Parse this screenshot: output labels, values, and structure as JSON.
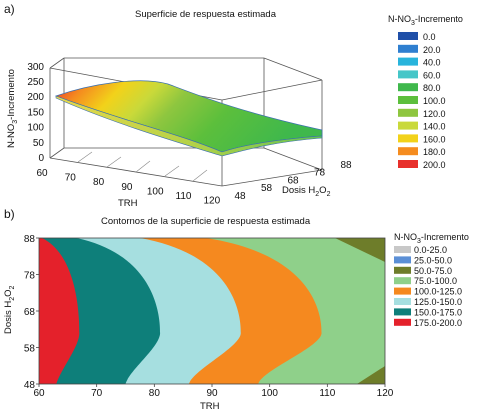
{
  "chart_data": [
    {
      "panel": "a)",
      "type": "area",
      "title": "Superficie de respuesta estimada",
      "xlabel": "TRH",
      "ylabel": "Dosis H2O2",
      "zlabel": "N-NO3-Incremento",
      "x_ticks": [
        "60",
        "70",
        "80",
        "90",
        "100",
        "110",
        "120"
      ],
      "y_ticks": [
        "48",
        "58",
        "68",
        "78",
        "88"
      ],
      "z_ticks": [
        "0",
        "50",
        "100",
        "150",
        "200",
        "250",
        "300"
      ],
      "xlim": [
        60,
        120
      ],
      "ylim": [
        48,
        88
      ],
      "zlim": [
        0,
        300
      ],
      "legend_title": "N-NO3-Incremento",
      "legend": [
        {
          "label": "0.0",
          "color": "#1f4fa8"
        },
        {
          "label": "20.0",
          "color": "#2f7fd0"
        },
        {
          "label": "40.0",
          "color": "#28b4dc"
        },
        {
          "label": "60.0",
          "color": "#45c6c8"
        },
        {
          "label": "80.0",
          "color": "#3fb84c"
        },
        {
          "label": "100.0",
          "color": "#5cbf3c"
        },
        {
          "label": "120.0",
          "color": "#8ec63f"
        },
        {
          "label": "140.0",
          "color": "#c9d93a"
        },
        {
          "label": "160.0",
          "color": "#f2d21a"
        },
        {
          "label": "180.0",
          "color": "#f58c1f"
        },
        {
          "label": "200.0",
          "color": "#e8302b"
        }
      ],
      "surface_samples": [
        {
          "trh": 60,
          "dosis": 48,
          "z": 190
        },
        {
          "trh": 90,
          "dosis": 48,
          "z": 125
        },
        {
          "trh": 120,
          "dosis": 48,
          "z": 60
        },
        {
          "trh": 60,
          "dosis": 88,
          "z": 180
        },
        {
          "trh": 90,
          "dosis": 88,
          "z": 120
        },
        {
          "trh": 120,
          "dosis": 88,
          "z": 65
        }
      ]
    },
    {
      "panel": "b)",
      "type": "heatmap",
      "title": "Contornos de la superficie de respuesta estimada",
      "xlabel": "TRH",
      "ylabel": "Dosis H2O2",
      "x_ticks": [
        "60",
        "70",
        "80",
        "90",
        "100",
        "110",
        "120"
      ],
      "y_ticks": [
        "48",
        "58",
        "68",
        "78",
        "88"
      ],
      "xlim": [
        60,
        120
      ],
      "ylim": [
        48,
        88
      ],
      "legend_title": "N-NO3-Incremento",
      "legend": [
        {
          "label": "0.0-25.0",
          "color": "#c8c8c8"
        },
        {
          "label": "25.0-50.0",
          "color": "#5b8fd6"
        },
        {
          "label": "50.0-75.0",
          "color": "#6e7d2a"
        },
        {
          "label": "75.0-100.0",
          "color": "#8fd08a"
        },
        {
          "label": "100.0-125.0",
          "color": "#f5891f"
        },
        {
          "label": "125.0-150.0",
          "color": "#a6dfe0"
        },
        {
          "label": "150.0-175.0",
          "color": "#0e7f7a"
        },
        {
          "label": "175.0-200.0",
          "color": "#e4212b"
        }
      ],
      "contour_boundaries": [
        {
          "level": "175.0-200.0",
          "x_at_top": 60.5,
          "x_at_mid": 67.0,
          "x_at_bottom": 63.0
        },
        {
          "level": "150.0-175.0",
          "x_at_top": 66.5,
          "x_at_mid": 81.0,
          "x_at_bottom": 75.0
        },
        {
          "level": "125.0-150.0",
          "x_at_top": 77.5,
          "x_at_mid": 95.0,
          "x_at_bottom": 86.0
        },
        {
          "level": "100.0-125.0",
          "x_at_top": 89.0,
          "x_at_mid": 109.0,
          "x_at_bottom": 98.0
        }
      ]
    }
  ],
  "text": {
    "panel_a": "a)",
    "panel_b": "b)",
    "title_a": "Superficie de respuesta estimada",
    "title_b": "Contornos de la superficie de respuesta estimada",
    "xlabel": "TRH",
    "ylabel_dose": "Dosis H",
    "ylabel_dose_sub": "2",
    "ylabel_dose_o": "O",
    "ylabel_dose_sub2": "2",
    "zlabel_pre": "N-NO",
    "zlabel_sub": "3",
    "zlabel_post": "-Incremento",
    "legend_title_pre": "N-NO",
    "legend_title_sub": "3",
    "legend_title_post": "-Incremento"
  }
}
